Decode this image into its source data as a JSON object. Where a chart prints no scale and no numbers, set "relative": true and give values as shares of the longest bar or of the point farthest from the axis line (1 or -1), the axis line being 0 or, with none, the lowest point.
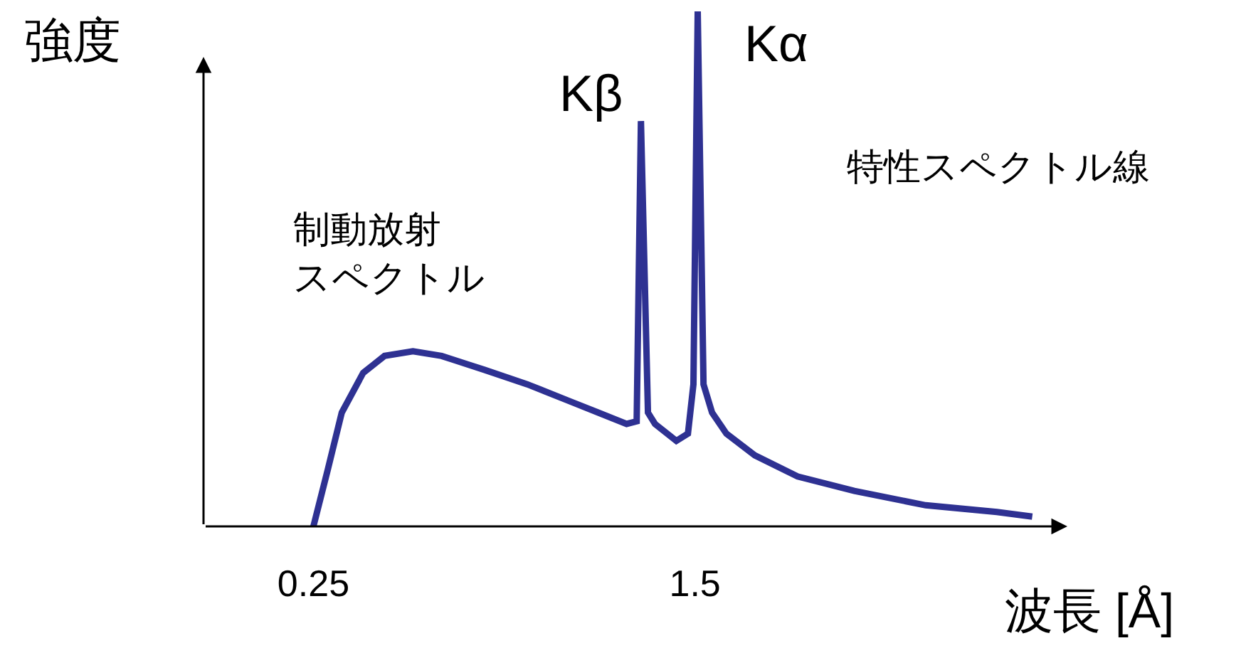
{
  "chart_data": {
    "type": "line",
    "relative": true,
    "xlabel": "波長 [Å]",
    "ylabel": "強度",
    "color": "#2e3192",
    "xlim": [
      -0.11,
      2.72
    ],
    "xticks": [
      0.25,
      1.5
    ],
    "legend": false,
    "marker": "none",
    "line_style": "solid",
    "x": [
      0.25,
      0.297,
      0.343,
      0.413,
      0.483,
      0.576,
      0.67,
      0.81,
      0.95,
      1.09,
      1.183,
      1.276,
      1.309,
      1.323,
      1.346,
      1.369,
      1.439,
      1.477,
      1.495,
      1.509,
      1.528,
      1.556,
      1.603,
      1.696,
      1.836,
      2.022,
      2.256,
      2.489,
      2.605
    ],
    "values": [
      0,
      0.11,
      0.221,
      0.298,
      0.331,
      0.34,
      0.331,
      0.304,
      0.276,
      0.243,
      0.221,
      0.199,
      0.204,
      0.787,
      0.221,
      0.199,
      0.166,
      0.18,
      0.276,
      1.0,
      0.276,
      0.221,
      0.18,
      0.138,
      0.097,
      0.069,
      0.041,
      0.028,
      0.019
    ],
    "annotations": [
      {
        "text": "Kβ",
        "x": 1.323,
        "y": 0.787
      },
      {
        "text": "Kα",
        "x": 1.509,
        "y": 1.0
      },
      "特性スペクトル線",
      "制動放射スペクトル"
    ]
  }
}
